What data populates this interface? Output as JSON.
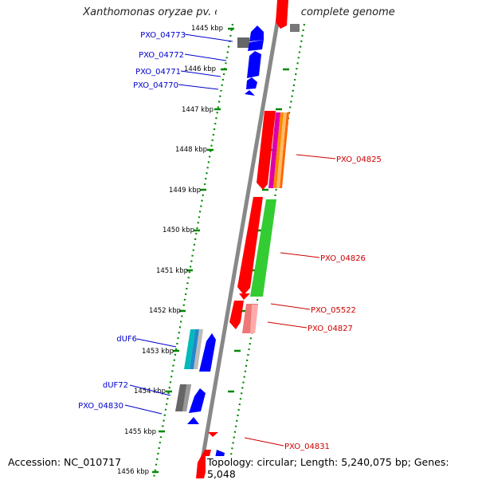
{
  "title": "Xanthomonas oryzae pv. oryzae PXO99A, complete genome",
  "accession": "Accession: NC_010717",
  "summary": "Topology: circular; Length: 5,240,075 bp; Genes: 5,048",
  "ticks": [
    "1445 kbp",
    "1446 kbp",
    "1447 kbp",
    "1448 kbp",
    "1449 kbp",
    "1450 kbp",
    "1451 kbp",
    "1452 kbp",
    "1453 kbp",
    "1454 kbp",
    "1455 kbp",
    "1456 kbp"
  ],
  "left_labels": [
    "PXO_04773",
    "PXO_04772",
    "PXO_04771",
    "PXO_04770",
    "dUF6",
    "dUF72",
    "PXO_04830"
  ],
  "right_labels": [
    "PXO_04825",
    "PXO_04826",
    "PXO_05522",
    "PXO_04827",
    "PXO_04831"
  ],
  "colors": {
    "forward_feature": "#ff0000",
    "reverse_feature": "#0000ff",
    "left_label": "#0000cc",
    "right_label": "#cc0000",
    "dotted_track": "#008800",
    "backbone": "#888888"
  }
}
